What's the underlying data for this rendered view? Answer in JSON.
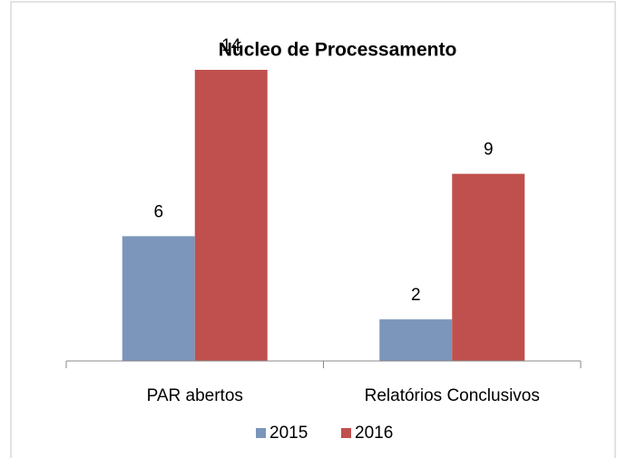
{
  "chart_data": {
    "type": "bar",
    "title": "Núcleo de Processamento",
    "categories": [
      "PAR abertos",
      "Relatórios Conclusivos"
    ],
    "series": [
      {
        "name": "2015",
        "color": "#7b96ba",
        "values": [
          6,
          2
        ]
      },
      {
        "name": "2016",
        "color": "#c0504d",
        "values": [
          14,
          9
        ]
      }
    ],
    "legend": "bottom"
  }
}
